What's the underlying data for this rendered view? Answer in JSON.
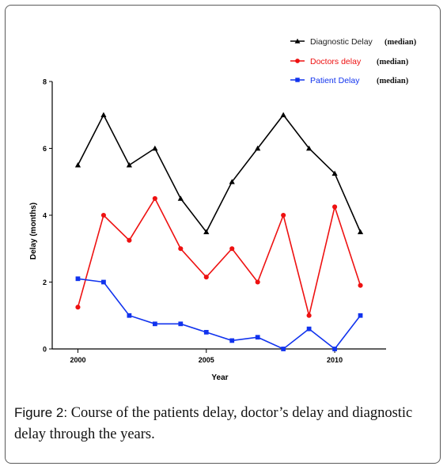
{
  "figure": {
    "label": "Figure 2:",
    "caption": "Course of the patients delay, doctor’s delay and diagnostic delay through the years."
  },
  "chart_data": {
    "type": "line",
    "x": [
      2000,
      2001,
      2002,
      2003,
      2004,
      2005,
      2006,
      2007,
      2008,
      2009,
      2010,
      2011
    ],
    "xlabel": "Year",
    "ylabel": "Delay (months)",
    "xlim": [
      1999,
      2012
    ],
    "ylim": [
      0,
      8
    ],
    "xticks": [
      2000,
      2005,
      2010
    ],
    "xtick_labels": [
      "2000",
      "2005",
      "2010"
    ],
    "yticks": [
      0,
      2,
      4,
      6,
      8
    ],
    "ytick_labels": [
      "0",
      "2",
      "4",
      "6",
      "8"
    ],
    "grid": false,
    "legend_position": "top-right",
    "series": [
      {
        "name": "Diagnostic Delay",
        "qualifier": "(median)",
        "color": "#000000",
        "marker": "triangle",
        "values": [
          5.5,
          7.0,
          5.5,
          6.0,
          4.5,
          3.5,
          5.0,
          6.0,
          7.0,
          6.0,
          5.25,
          3.5
        ]
      },
      {
        "name": "Doctors delay",
        "qualifier": "(median)",
        "color": "#ee1111",
        "marker": "circle",
        "values": [
          1.25,
          4.0,
          3.25,
          4.5,
          3.0,
          2.15,
          3.0,
          2.0,
          4.0,
          1.0,
          4.25,
          1.9
        ]
      },
      {
        "name": "Patient Delay",
        "qualifier": "(median)",
        "color": "#1133ee",
        "marker": "square",
        "values": [
          2.1,
          2.0,
          1.0,
          0.75,
          0.75,
          0.5,
          0.25,
          0.35,
          0.0,
          0.6,
          0.0,
          1.0
        ]
      }
    ]
  }
}
